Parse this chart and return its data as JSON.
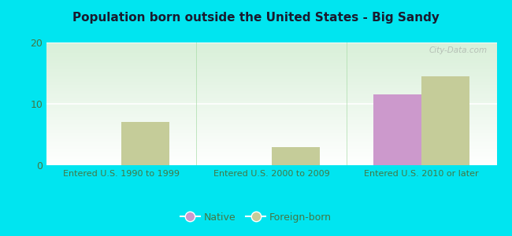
{
  "title": "Population born outside the United States - Big Sandy",
  "categories": [
    "Entered U.S. 1990 to 1999",
    "Entered U.S. 2000 to 2009",
    "Entered U.S. 2010 or later"
  ],
  "native_values": [
    0,
    0,
    11.5
  ],
  "foreign_values": [
    7.0,
    3.0,
    14.5
  ],
  "native_color": "#cc99cc",
  "foreign_color": "#c5cc99",
  "background_color": "#00e5f0",
  "ylim": [
    0,
    20
  ],
  "yticks": [
    0,
    10,
    20
  ],
  "bar_width": 0.32,
  "legend_labels": [
    "Native",
    "Foreign-born"
  ],
  "watermark": "City-Data.com",
  "title_fontsize": 11,
  "axis_label_fontsize": 8,
  "tick_label_color": "#447744",
  "title_color": "#1a1a2e"
}
